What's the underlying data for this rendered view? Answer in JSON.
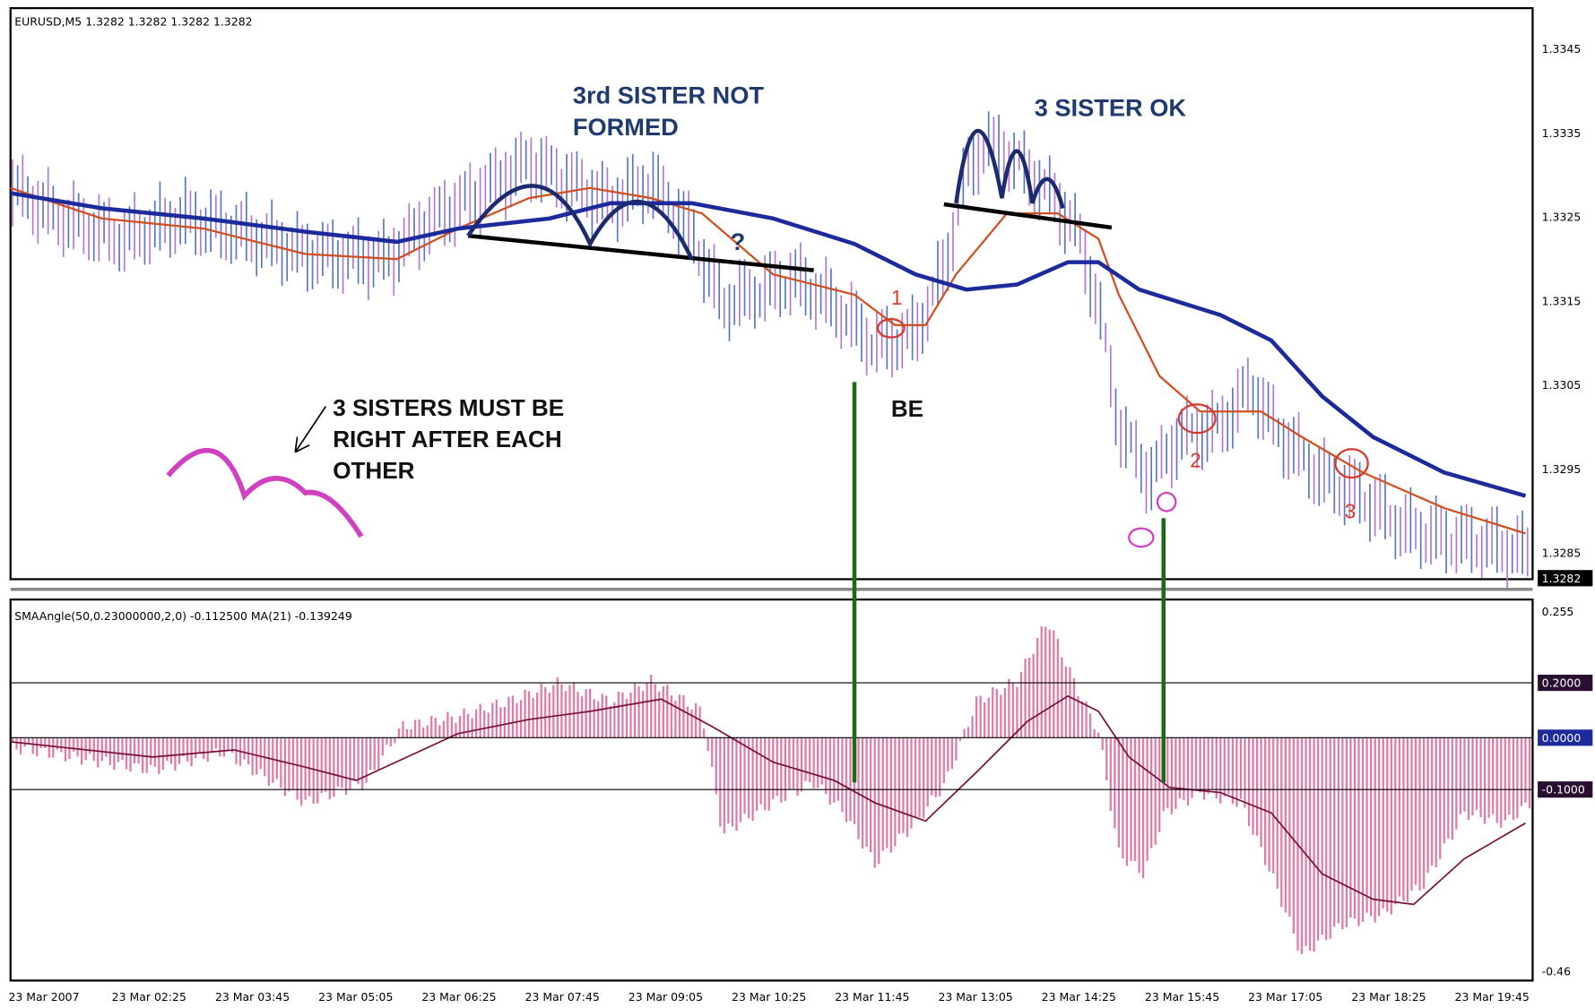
{
  "header": {
    "symbol": "EURUSD,M5 1.3282 1.3282 1.3282 1.3282"
  },
  "annotations": {
    "not_formed": [
      "3rd SISTER NOT",
      "FORMED"
    ],
    "ok": "3 SISTER OK",
    "must_be": [
      "3 SISTERS MUST BE",
      "RIGHT AFTER EACH",
      "OTHER"
    ],
    "be": "BE",
    "question": "?",
    "marks": [
      "1",
      "2",
      "3"
    ]
  },
  "price_axis": {
    "labels": [
      "1.3345",
      "1.3335",
      "1.3325",
      "1.3315",
      "1.3305",
      "1.3295",
      "1.3285"
    ],
    "current": "1.3282"
  },
  "indicator": {
    "header": "SMAAngle(50,0.23000000,2,0) -0.112500  MA(21) -0.139249",
    "top": "0.255",
    "levels": [
      "0.2000",
      "0.0000",
      "-0.1000"
    ],
    "bottom": "-0.46"
  },
  "time_axis": [
    "23 Mar 2007",
    "23 Mar 02:25",
    "23 Mar 03:45",
    "23 Mar 05:05",
    "23 Mar 06:25",
    "23 Mar 07:45",
    "23 Mar 09:05",
    "23 Mar 10:25",
    "23 Mar 11:45",
    "23 Mar 13:05",
    "23 Mar 14:25",
    "23 Mar 15:45",
    "23 Mar 17:05",
    "23 Mar 18:25",
    "23 Mar 19:45"
  ]
}
